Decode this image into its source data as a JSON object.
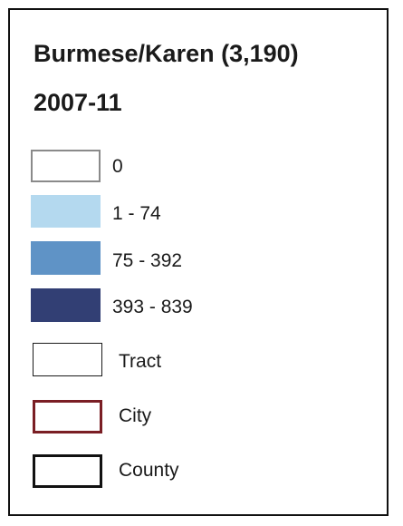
{
  "legend": {
    "title": "Burmese/Karen (3,190)",
    "period": "2007-11",
    "classes": [
      {
        "label": "0",
        "fill": "#ffffff",
        "border": "#8a8a8a"
      },
      {
        "label": "1 - 74",
        "fill": "#b4d9ef",
        "border": "#b4d9ef"
      },
      {
        "label": "75 - 392",
        "fill": "#5f93c6",
        "border": "#5f93c6"
      },
      {
        "label": "393 - 839",
        "fill": "#323f74",
        "border": "#323f74"
      }
    ],
    "boundaries": [
      {
        "label": "Tract",
        "border": "#1a1a1a"
      },
      {
        "label": "City",
        "border": "#7a1e24"
      },
      {
        "label": "County",
        "border": "#111111"
      }
    ]
  }
}
